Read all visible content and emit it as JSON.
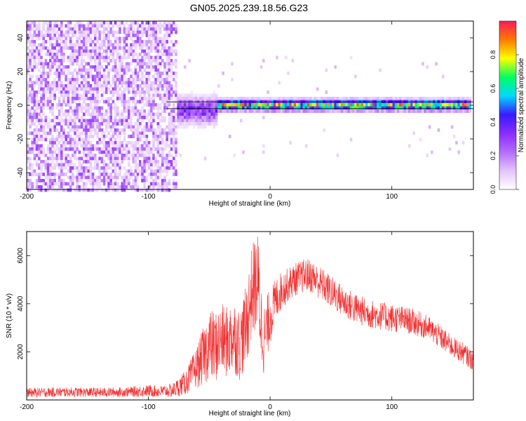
{
  "title": "GN05.2025.239.18.56.G23",
  "chart_data": [
    {
      "type": "heatmap",
      "xlabel": "Height of straight line (km)",
      "ylabel": "Frequency (Hz)",
      "xlim": [
        -200,
        167
      ],
      "ylim": [
        -50,
        50
      ],
      "x_ticks": [
        -200,
        -100,
        0,
        100
      ],
      "y_ticks": [
        -40,
        -20,
        0,
        20,
        40
      ],
      "colorbar": {
        "label": "Normalized spectral amplitude",
        "range": [
          0,
          1
        ],
        "ticks": [
          0.0,
          0.2,
          0.4,
          0.6,
          0.8
        ],
        "colors": [
          "#ffffff",
          "#e4c4ff",
          "#b46cff",
          "#8a2cff",
          "#3a1aff",
          "#00d8ff",
          "#00ff60",
          "#ffff00",
          "#ff7a00",
          "#ff1a5a"
        ]
      },
      "regions": [
        {
          "x_range": [
            -200,
            -78
          ],
          "freq_spread_hz": 50,
          "amplitude": 0.15
        },
        {
          "x_range": [
            -78,
            -45
          ],
          "freq_center_hz": -2,
          "freq_spread_hz": 5,
          "amplitude": 0.4
        },
        {
          "x_range": [
            -45,
            165
          ],
          "freq_center_hz": 1,
          "freq_spread_hz": 2,
          "amplitude": 0.9
        }
      ],
      "reference_lines_hz": [
        -2,
        2
      ]
    },
    {
      "type": "line",
      "xlabel": "Height of straight line (km)",
      "ylabel": "SNR (10 * v/v)",
      "xlim": [
        -200,
        167
      ],
      "ylim": [
        0,
        7000
      ],
      "x_ticks": [
        -200,
        -100,
        0,
        100
      ],
      "y_ticks": [
        2000,
        4000,
        6000
      ],
      "color": "#f03030",
      "series": [
        {
          "x": [
            -200,
            -180,
            -160,
            -140,
            -120,
            -100,
            -90,
            -80,
            -75,
            -70,
            -65,
            -60,
            -55,
            -50,
            -45,
            -40,
            -35,
            -30,
            -25,
            -20,
            -15,
            -10,
            -8,
            -5,
            0,
            5,
            10,
            15,
            20,
            25,
            30,
            35,
            40,
            45,
            50,
            60,
            70,
            80,
            90,
            100,
            110,
            120,
            130,
            140,
            150,
            160,
            167
          ],
          "y": [
            300,
            320,
            330,
            310,
            330,
            380,
            350,
            400,
            550,
            700,
            1000,
            1400,
            1800,
            2300,
            2200,
            2500,
            2400,
            2700,
            2300,
            3000,
            4500,
            5000,
            3500,
            2500,
            3500,
            4200,
            4600,
            4800,
            5000,
            5100,
            5200,
            5100,
            4900,
            4700,
            4500,
            4100,
            3800,
            3600,
            3500,
            3400,
            3350,
            3200,
            3000,
            2600,
            2200,
            1900,
            1600
          ],
          "noise": [
            200,
            200,
            200,
            200,
            200,
            250,
            250,
            300,
            400,
            500,
            700,
            900,
            1200,
            1500,
            1500,
            1500,
            1500,
            1600,
            1500,
            1700,
            2000,
            2000,
            1800,
            1500,
            1200,
            900,
            800,
            700,
            700,
            700,
            700,
            700,
            700,
            700,
            700,
            650,
            650,
            600,
            600,
            600,
            550,
            550,
            500,
            500,
            450,
            450,
            400
          ]
        }
      ]
    }
  ]
}
